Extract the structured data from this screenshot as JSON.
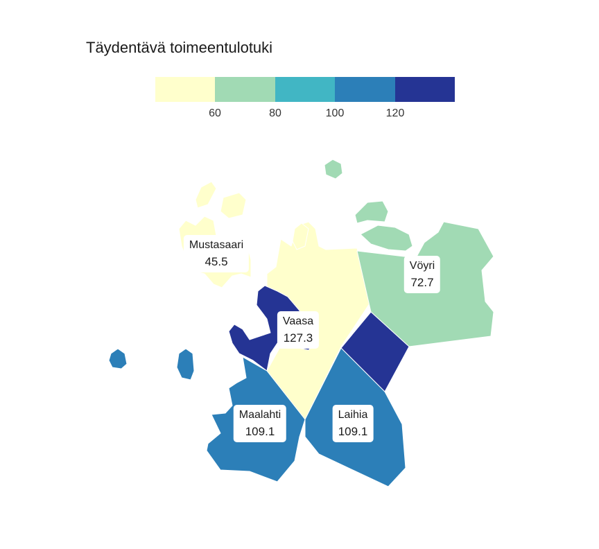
{
  "title": "Täydentävä toimeentulotuki",
  "legend": {
    "colors": [
      "#ffffcc",
      "#a1dab4",
      "#41b6c4",
      "#2c7fb8",
      "#253494"
    ],
    "ticks": [
      "60",
      "80",
      "100",
      "120"
    ]
  },
  "regions": [
    {
      "name": "Mustasaari",
      "value": "45.5",
      "color": "#ffffcc"
    },
    {
      "name": "Vöyri",
      "value": "72.7",
      "color": "#a1dab4"
    },
    {
      "name": "Vaasa",
      "value": "127.3",
      "color": "#253494"
    },
    {
      "name": "Maalahti",
      "value": "109.1",
      "color": "#2c7fb8"
    },
    {
      "name": "Laihia",
      "value": "109.1",
      "color": "#2c7fb8"
    }
  ]
}
